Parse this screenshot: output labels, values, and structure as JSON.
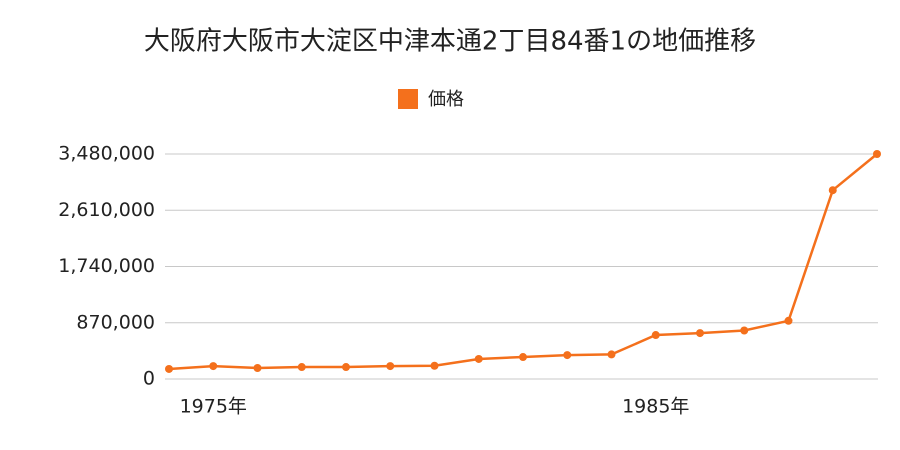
{
  "chart_data": {
    "type": "line",
    "title": "大阪府大阪市大淀区中津本通2丁目84番1の地価推移",
    "x": [
      1974,
      1975,
      1976,
      1977,
      1978,
      1979,
      1980,
      1981,
      1982,
      1983,
      1984,
      1985,
      1986,
      1987,
      1988,
      1989,
      1990
    ],
    "series": [
      {
        "name": "価格",
        "color": "#f4701c",
        "values": [
          155000,
          200000,
          170000,
          185000,
          185000,
          200000,
          205000,
          310000,
          340000,
          370000,
          380000,
          680000,
          710000,
          750000,
          900000,
          2920000,
          3480000
        ]
      }
    ],
    "xlim": [
      1974,
      1990
    ],
    "xticks": [
      {
        "value": 1975,
        "label": "1975年"
      },
      {
        "value": 1985,
        "label": "1985年"
      }
    ],
    "ylim": [
      0,
      3480000
    ],
    "yticks": [
      0,
      {
        "value": 870000,
        "label": "870,000"
      },
      {
        "value": 1740000,
        "label": "1,740,000"
      },
      {
        "value": 2610000,
        "label": "2,610,000"
      },
      {
        "value": 3480000,
        "label": "3,480,000"
      }
    ],
    "grid": true,
    "legend": "top"
  }
}
